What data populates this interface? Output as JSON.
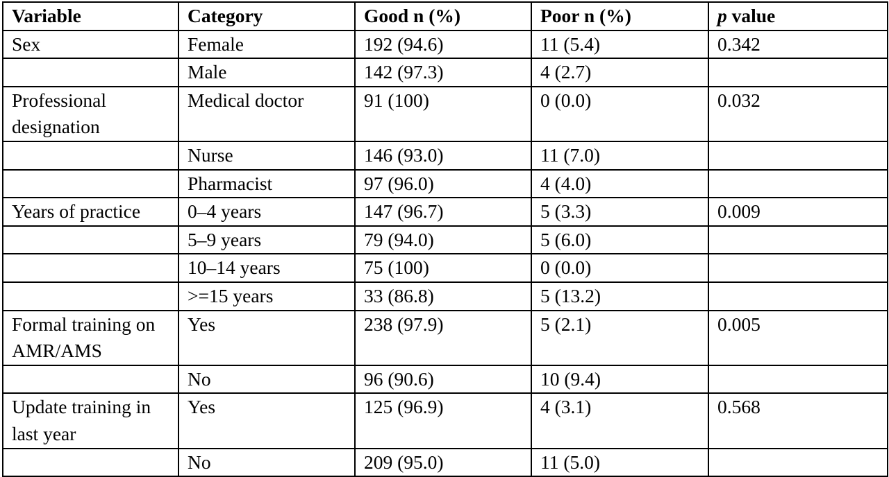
{
  "headers": {
    "variable": "Variable",
    "category": "Category",
    "good": "Good n (%)",
    "poor": "Poor n (%)",
    "pvalue_italic": "p",
    "pvalue_rest": " value"
  },
  "rows": [
    {
      "variable": "Sex",
      "category": "Female",
      "good": "192 (94.6)",
      "poor": "11 (5.4)",
      "pvalue": "0.342"
    },
    {
      "variable": "",
      "category": "Male",
      "good": "142 (97.3)",
      "poor": "4 (2.7)",
      "pvalue": ""
    },
    {
      "variable": "Professional designation",
      "category": "Medical doctor",
      "good": "91 (100)",
      "poor": "0 (0.0)",
      "pvalue": "0.032"
    },
    {
      "variable": "",
      "category": "Nurse",
      "good": "146 (93.0)",
      "poor": "11 (7.0)",
      "pvalue": ""
    },
    {
      "variable": "",
      "category": "Pharmacist",
      "good": "97 (96.0)",
      "poor": "4 (4.0)",
      "pvalue": ""
    },
    {
      "variable": "Years of practice",
      "category": "0–4 years",
      "good": "147 (96.7)",
      "poor": "5 (3.3)",
      "pvalue": "0.009"
    },
    {
      "variable": "",
      "category": "5–9 years",
      "good": "79 (94.0)",
      "poor": "5 (6.0)",
      "pvalue": ""
    },
    {
      "variable": "",
      "category": "10–14 years",
      "good": "75 (100)",
      "poor": "0 (0.0)",
      "pvalue": ""
    },
    {
      "variable": "",
      "category": ">=15 years",
      "good": "33 (86.8)",
      "poor": "5 (13.2)",
      "pvalue": ""
    },
    {
      "variable": "Formal training on AMR/AMS",
      "category": "Yes",
      "good": "238 (97.9)",
      "poor": "5 (2.1)",
      "pvalue": "0.005"
    },
    {
      "variable": "",
      "category": "No",
      "good": "96 (90.6)",
      "poor": "10 (9.4)",
      "pvalue": ""
    },
    {
      "variable": "Update training in last year",
      "category": "Yes",
      "good": "125 (96.9)",
      "poor": "4 (3.1)",
      "pvalue": "0.568"
    },
    {
      "variable": "",
      "category": "No",
      "good": "209 (95.0)",
      "poor": "11 (5.0)",
      "pvalue": ""
    }
  ]
}
